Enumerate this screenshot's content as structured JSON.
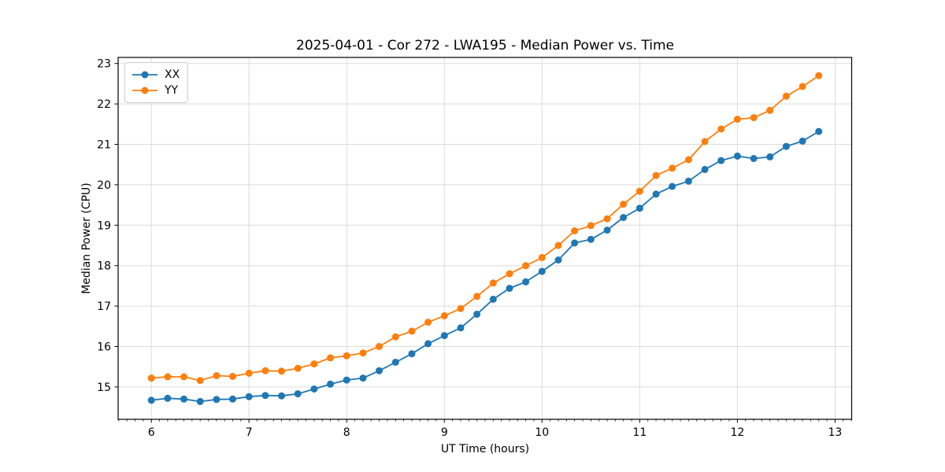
{
  "chart_data": {
    "type": "line",
    "title": "2025-04-01 - Cor 272 - LWA195 - Median Power vs. Time",
    "xlabel": "UT Time (hours)",
    "ylabel": "Median Power (CPU)",
    "grid": true,
    "legend_position": "upper left",
    "marker": "o",
    "xlim": [
      5.66,
      13.17
    ],
    "ylim": [
      14.2,
      23.15
    ],
    "x_ticks": [
      6,
      7,
      8,
      9,
      10,
      11,
      12,
      13
    ],
    "y_ticks": [
      15,
      16,
      17,
      18,
      19,
      20,
      21,
      22,
      23
    ],
    "x_minor_ticks_per_hour": 12,
    "x": [
      6.0,
      6.167,
      6.333,
      6.5,
      6.667,
      6.833,
      7.0,
      7.167,
      7.333,
      7.5,
      7.667,
      7.833,
      8.0,
      8.167,
      8.333,
      8.5,
      8.667,
      8.833,
      9.0,
      9.167,
      9.333,
      9.5,
      9.667,
      9.833,
      10.0,
      10.167,
      10.333,
      10.5,
      10.667,
      10.833,
      11.0,
      11.167,
      11.333,
      11.5,
      11.667,
      11.833,
      12.0,
      12.167,
      12.333,
      12.5,
      12.667,
      12.833
    ],
    "series": [
      {
        "name": "XX",
        "color": "#1f77b4",
        "values": [
          14.67,
          14.72,
          14.7,
          14.64,
          14.69,
          14.7,
          14.76,
          14.79,
          14.78,
          14.83,
          14.95,
          15.07,
          15.17,
          15.22,
          15.4,
          15.61,
          15.82,
          16.07,
          16.27,
          16.46,
          16.8,
          17.17,
          17.44,
          17.6,
          17.86,
          18.14,
          18.56,
          18.65,
          18.88,
          19.19,
          19.42,
          19.77,
          19.96,
          20.09,
          20.38,
          20.6,
          20.71,
          20.65,
          20.69,
          20.95,
          21.08,
          21.32
        ]
      },
      {
        "name": "YY",
        "color": "#ff7f0e",
        "values": [
          15.22,
          15.25,
          15.25,
          15.16,
          15.28,
          15.26,
          15.34,
          15.4,
          15.39,
          15.46,
          15.57,
          15.72,
          15.77,
          15.84,
          16.0,
          16.24,
          16.38,
          16.6,
          16.76,
          16.94,
          17.24,
          17.57,
          17.8,
          18.0,
          18.2,
          18.5,
          18.86,
          18.99,
          19.16,
          19.52,
          19.84,
          20.23,
          20.41,
          20.62,
          21.07,
          21.38,
          21.62,
          21.66,
          21.84,
          22.19,
          22.43,
          22.7
        ]
      }
    ],
    "colors": {
      "grid": "#dcdcdc",
      "spine": "#000000",
      "text": "#000000",
      "background": "#ffffff"
    }
  }
}
